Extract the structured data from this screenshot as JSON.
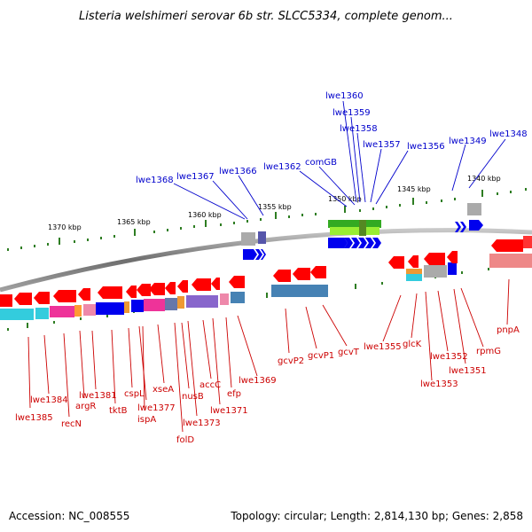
{
  "title": "Listeria welshimeri serovar 6b str. SLCC5334, complete genom...",
  "footer": {
    "accession": "Accession: NC_008555",
    "summary": "Topology: circular; Length: 2,814,130 bp; Genes: 2,858"
  },
  "scale_labels": [
    "1370 kbp",
    "1365 kbp",
    "1360 kbp",
    "1355 kbp",
    "1350 kbp",
    "1345 kbp",
    "1340 kbp"
  ],
  "top_labels": [
    "lwe1368",
    "lwe1367",
    "lwe1366",
    "lwe1362",
    "comGB",
    "lwe1360",
    "lwe1359",
    "lwe1358",
    "lwe1357",
    "lwe1356",
    "lwe1349",
    "lwe1348"
  ],
  "bottom_labels": [
    "lwe1384",
    "lwe1385",
    "recN",
    "argR",
    "lwe1381",
    "tktB",
    "cspL",
    "lwe1377",
    "ispA",
    "xseA",
    "folD",
    "nusB",
    "lwe1373",
    "accC",
    "lwe1371",
    "efp",
    "lwe1369",
    "gcvP2",
    "gcvP1",
    "gcvT",
    "lwe1355",
    "glcK",
    "lwe1353",
    "lwe1352",
    "lwe1351",
    "rpmG",
    "pnpA"
  ],
  "colors": {
    "backbone": "#8c8c8c",
    "gene_red": "#ff0000",
    "label_blue": "#0000cc",
    "label_red": "#cc0000",
    "tick_green": "#2e7d22",
    "cyan": "#33ccdd",
    "magenta": "#ee3399",
    "steel_blue": "#4682b4",
    "lime": "#99ee33",
    "purple": "#8866cc"
  }
}
